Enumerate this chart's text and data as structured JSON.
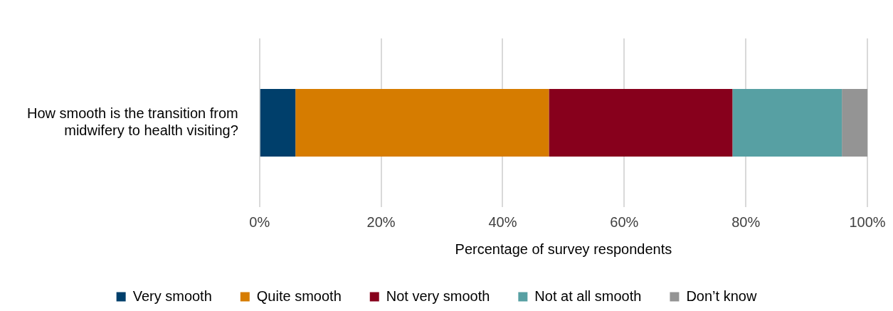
{
  "chart_data": {
    "type": "bar",
    "orientation": "horizontal",
    "stacked": true,
    "categories": [
      "How smooth is the transition from midwifery to health visiting?"
    ],
    "series": [
      {
        "name": "Very smooth",
        "color": "#003f6b",
        "values": [
          5.9
        ]
      },
      {
        "name": "Quite smooth",
        "color": "#d67c00",
        "values": [
          41.7
        ]
      },
      {
        "name": "Not very smooth",
        "color": "#87001c",
        "values": [
          30.2
        ]
      },
      {
        "name": "Not at all smooth",
        "color": "#57a0a3",
        "values": [
          18
        ]
      },
      {
        "name": "Don’t know",
        "color": "#949494",
        "values": [
          4.2
        ]
      }
    ],
    "xlabel": "Percentage of survey respondents",
    "xlim": [
      0,
      100
    ],
    "xticks": [
      {
        "value": 0,
        "label": "0%"
      },
      {
        "value": 20,
        "label": "20%"
      },
      {
        "value": 40,
        "label": "40%"
      },
      {
        "value": 60,
        "label": "60%"
      },
      {
        "value": 80,
        "label": "80%"
      },
      {
        "value": 100,
        "label": "100%"
      }
    ],
    "grid": "x",
    "legend": "bottom"
  }
}
